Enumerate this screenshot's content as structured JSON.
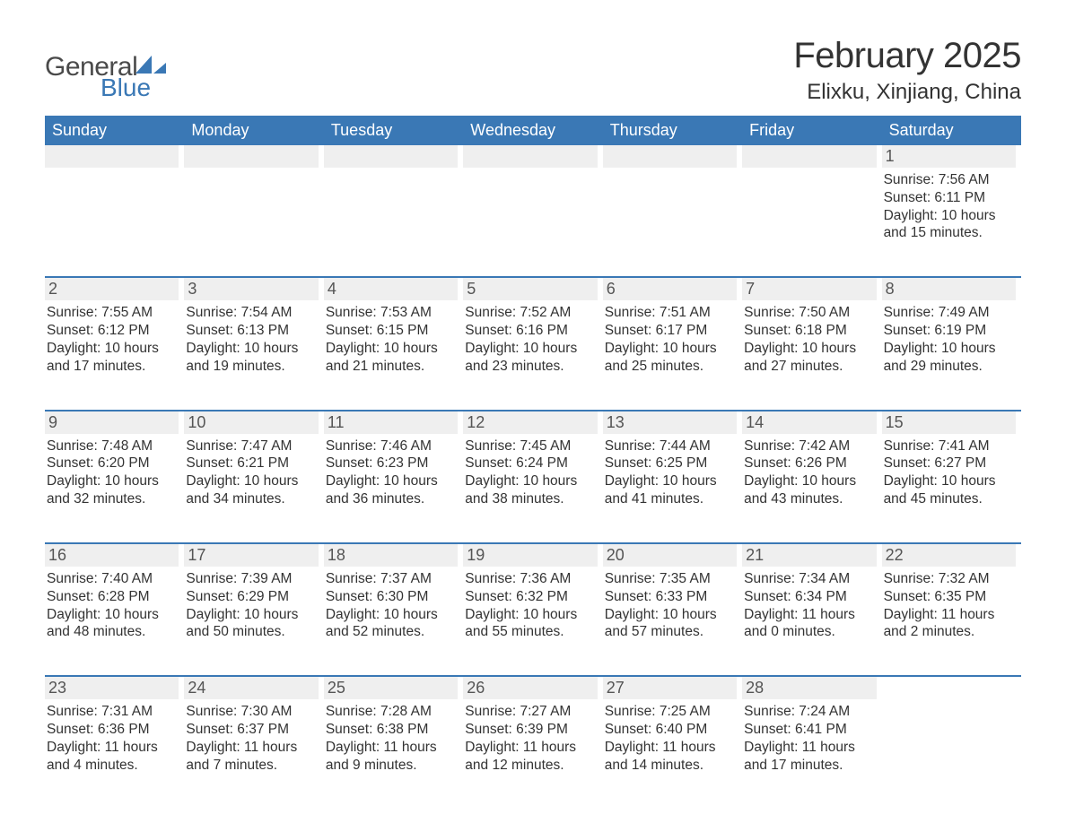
{
  "brand": {
    "word1": "General",
    "word2": "Blue",
    "sail_color": "#3a78b5"
  },
  "title": "February 2025",
  "location": "Elixku, Xinjiang, China",
  "colors": {
    "header_bg": "#3a78b5",
    "header_text": "#ffffff",
    "row_border": "#3a78b5",
    "daynum_bg": "#efefef",
    "text": "#333333"
  },
  "weekdays": [
    "Sunday",
    "Monday",
    "Tuesday",
    "Wednesday",
    "Thursday",
    "Friday",
    "Saturday"
  ],
  "weeks": [
    [
      null,
      null,
      null,
      null,
      null,
      null,
      {
        "n": "1",
        "sr": "Sunrise: 7:56 AM",
        "ss": "Sunset: 6:11 PM",
        "dl": "Daylight: 10 hours and 15 minutes."
      }
    ],
    [
      {
        "n": "2",
        "sr": "Sunrise: 7:55 AM",
        "ss": "Sunset: 6:12 PM",
        "dl": "Daylight: 10 hours and 17 minutes."
      },
      {
        "n": "3",
        "sr": "Sunrise: 7:54 AM",
        "ss": "Sunset: 6:13 PM",
        "dl": "Daylight: 10 hours and 19 minutes."
      },
      {
        "n": "4",
        "sr": "Sunrise: 7:53 AM",
        "ss": "Sunset: 6:15 PM",
        "dl": "Daylight: 10 hours and 21 minutes."
      },
      {
        "n": "5",
        "sr": "Sunrise: 7:52 AM",
        "ss": "Sunset: 6:16 PM",
        "dl": "Daylight: 10 hours and 23 minutes."
      },
      {
        "n": "6",
        "sr": "Sunrise: 7:51 AM",
        "ss": "Sunset: 6:17 PM",
        "dl": "Daylight: 10 hours and 25 minutes."
      },
      {
        "n": "7",
        "sr": "Sunrise: 7:50 AM",
        "ss": "Sunset: 6:18 PM",
        "dl": "Daylight: 10 hours and 27 minutes."
      },
      {
        "n": "8",
        "sr": "Sunrise: 7:49 AM",
        "ss": "Sunset: 6:19 PM",
        "dl": "Daylight: 10 hours and 29 minutes."
      }
    ],
    [
      {
        "n": "9",
        "sr": "Sunrise: 7:48 AM",
        "ss": "Sunset: 6:20 PM",
        "dl": "Daylight: 10 hours and 32 minutes."
      },
      {
        "n": "10",
        "sr": "Sunrise: 7:47 AM",
        "ss": "Sunset: 6:21 PM",
        "dl": "Daylight: 10 hours and 34 minutes."
      },
      {
        "n": "11",
        "sr": "Sunrise: 7:46 AM",
        "ss": "Sunset: 6:23 PM",
        "dl": "Daylight: 10 hours and 36 minutes."
      },
      {
        "n": "12",
        "sr": "Sunrise: 7:45 AM",
        "ss": "Sunset: 6:24 PM",
        "dl": "Daylight: 10 hours and 38 minutes."
      },
      {
        "n": "13",
        "sr": "Sunrise: 7:44 AM",
        "ss": "Sunset: 6:25 PM",
        "dl": "Daylight: 10 hours and 41 minutes."
      },
      {
        "n": "14",
        "sr": "Sunrise: 7:42 AM",
        "ss": "Sunset: 6:26 PM",
        "dl": "Daylight: 10 hours and 43 minutes."
      },
      {
        "n": "15",
        "sr": "Sunrise: 7:41 AM",
        "ss": "Sunset: 6:27 PM",
        "dl": "Daylight: 10 hours and 45 minutes."
      }
    ],
    [
      {
        "n": "16",
        "sr": "Sunrise: 7:40 AM",
        "ss": "Sunset: 6:28 PM",
        "dl": "Daylight: 10 hours and 48 minutes."
      },
      {
        "n": "17",
        "sr": "Sunrise: 7:39 AM",
        "ss": "Sunset: 6:29 PM",
        "dl": "Daylight: 10 hours and 50 minutes."
      },
      {
        "n": "18",
        "sr": "Sunrise: 7:37 AM",
        "ss": "Sunset: 6:30 PM",
        "dl": "Daylight: 10 hours and 52 minutes."
      },
      {
        "n": "19",
        "sr": "Sunrise: 7:36 AM",
        "ss": "Sunset: 6:32 PM",
        "dl": "Daylight: 10 hours and 55 minutes."
      },
      {
        "n": "20",
        "sr": "Sunrise: 7:35 AM",
        "ss": "Sunset: 6:33 PM",
        "dl": "Daylight: 10 hours and 57 minutes."
      },
      {
        "n": "21",
        "sr": "Sunrise: 7:34 AM",
        "ss": "Sunset: 6:34 PM",
        "dl": "Daylight: 11 hours and 0 minutes."
      },
      {
        "n": "22",
        "sr": "Sunrise: 7:32 AM",
        "ss": "Sunset: 6:35 PM",
        "dl": "Daylight: 11 hours and 2 minutes."
      }
    ],
    [
      {
        "n": "23",
        "sr": "Sunrise: 7:31 AM",
        "ss": "Sunset: 6:36 PM",
        "dl": "Daylight: 11 hours and 4 minutes."
      },
      {
        "n": "24",
        "sr": "Sunrise: 7:30 AM",
        "ss": "Sunset: 6:37 PM",
        "dl": "Daylight: 11 hours and 7 minutes."
      },
      {
        "n": "25",
        "sr": "Sunrise: 7:28 AM",
        "ss": "Sunset: 6:38 PM",
        "dl": "Daylight: 11 hours and 9 minutes."
      },
      {
        "n": "26",
        "sr": "Sunrise: 7:27 AM",
        "ss": "Sunset: 6:39 PM",
        "dl": "Daylight: 11 hours and 12 minutes."
      },
      {
        "n": "27",
        "sr": "Sunrise: 7:25 AM",
        "ss": "Sunset: 6:40 PM",
        "dl": "Daylight: 11 hours and 14 minutes."
      },
      {
        "n": "28",
        "sr": "Sunrise: 7:24 AM",
        "ss": "Sunset: 6:41 PM",
        "dl": "Daylight: 11 hours and 17 minutes."
      },
      null
    ]
  ]
}
